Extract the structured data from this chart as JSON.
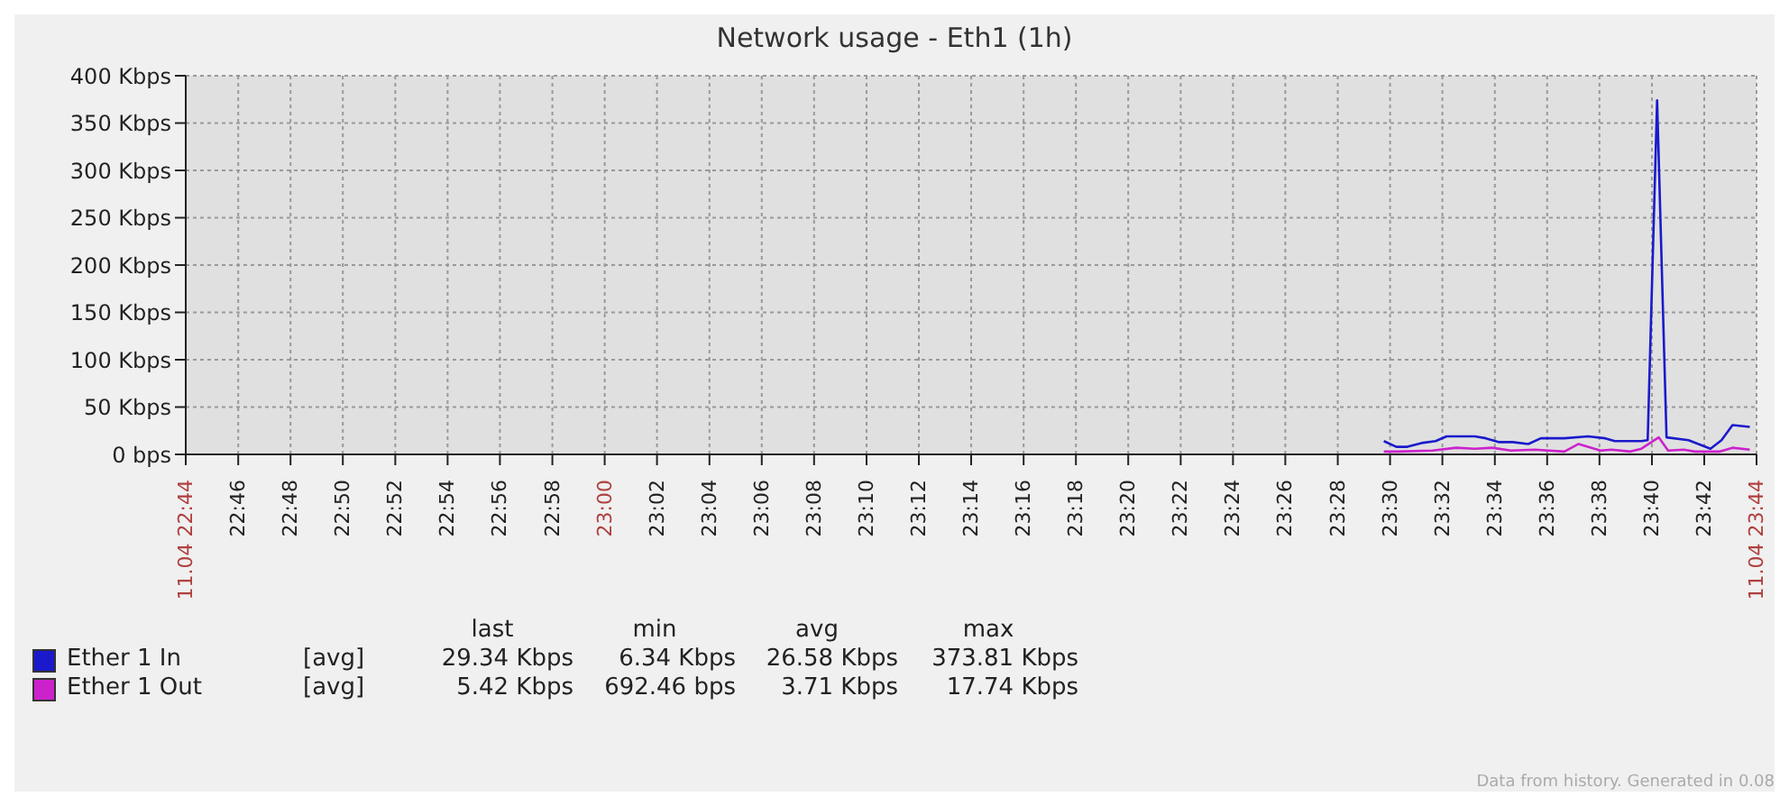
{
  "chart_data": {
    "type": "line",
    "title": "Network usage - Eth1 (1h)",
    "xlim": [
      22.7333,
      23.7333
    ],
    "xticks": [
      {
        "value": 22.7333,
        "label": "11.04 22:44"
      },
      {
        "value": 22.7667,
        "label": "22:46"
      },
      {
        "value": 22.8,
        "label": "22:48"
      },
      {
        "value": 22.8333,
        "label": "22:50"
      },
      {
        "value": 22.8667,
        "label": "22:52"
      },
      {
        "value": 22.9,
        "label": "22:54"
      },
      {
        "value": 22.9333,
        "label": "22:56"
      },
      {
        "value": 22.9667,
        "label": "22:58"
      },
      {
        "value": 23,
        "label": "23:00"
      },
      {
        "value": 23.0333,
        "label": "23:02"
      },
      {
        "value": 23.0667,
        "label": "23:04"
      },
      {
        "value": 23.1,
        "label": "23:06"
      },
      {
        "value": 23.1333,
        "label": "23:08"
      },
      {
        "value": 23.1667,
        "label": "23:10"
      },
      {
        "value": 23.2,
        "label": "23:12"
      },
      {
        "value": 23.2333,
        "label": "23:14"
      },
      {
        "value": 23.2667,
        "label": "23:16"
      },
      {
        "value": 23.3,
        "label": "23:18"
      },
      {
        "value": 23.3333,
        "label": "23:20"
      },
      {
        "value": 23.3667,
        "label": "23:22"
      },
      {
        "value": 23.4,
        "label": "23:24"
      },
      {
        "value": 23.4333,
        "label": "23:26"
      },
      {
        "value": 23.4667,
        "label": "23:28"
      },
      {
        "value": 23.5,
        "label": "23:30"
      },
      {
        "value": 23.5333,
        "label": "23:32"
      },
      {
        "value": 23.5667,
        "label": "23:34"
      },
      {
        "value": 23.6,
        "label": "23:36"
      },
      {
        "value": 23.6333,
        "label": "23:38"
      },
      {
        "value": 23.6667,
        "label": "23:40"
      },
      {
        "value": 23.7,
        "label": "23:42"
      },
      {
        "value": 23.7333,
        "label": "11.04 23:44"
      }
    ],
    "ylim": [
      0,
      400
    ],
    "yticks": [
      {
        "value": 0,
        "label": "0 bps"
      },
      {
        "value": 50,
        "label": "50 Kbps"
      },
      {
        "value": 100,
        "label": "100 Kbps"
      },
      {
        "value": 150,
        "label": "150 Kbps"
      },
      {
        "value": 200,
        "label": "200 Kbps"
      },
      {
        "value": 250,
        "label": "250 Kbps"
      },
      {
        "value": 300,
        "label": "300 Kbps"
      },
      {
        "value": 350,
        "label": "350 Kbps"
      },
      {
        "value": 400,
        "label": "400 Kbps"
      }
    ],
    "grid": true,
    "legend": "bottom",
    "marker": "none",
    "line_style": "solid",
    "series": [
      {
        "name": "Ether 1 In",
        "color": "#1a1acc",
        "x": [
          23.496,
          23.504,
          23.511,
          23.52,
          23.529,
          23.536,
          23.554,
          23.561,
          23.569,
          23.578,
          23.588,
          23.596,
          23.611,
          23.626,
          23.637,
          23.643,
          23.66,
          23.664,
          23.67,
          23.676,
          23.69,
          23.704,
          23.711,
          23.718,
          23.729
        ],
        "values": [
          14,
          8,
          8,
          12,
          14,
          19,
          19,
          17,
          13,
          13,
          11,
          17,
          17,
          19,
          17,
          14,
          14,
          15,
          374,
          18,
          15,
          6,
          15,
          31,
          29
        ]
      },
      {
        "name": "Ether 1 Out",
        "color": "#cc22cc",
        "x": [
          23.496,
          23.505,
          23.527,
          23.542,
          23.554,
          23.565,
          23.577,
          23.592,
          23.611,
          23.62,
          23.634,
          23.641,
          23.653,
          23.66,
          23.671,
          23.677,
          23.687,
          23.694,
          23.71,
          23.718,
          23.729
        ],
        "values": [
          3,
          3,
          4,
          7,
          6,
          7,
          4,
          5,
          3,
          11,
          4,
          5,
          3,
          6,
          18,
          4,
          5,
          3,
          3,
          7,
          5
        ]
      }
    ],
    "annotations": [
      "last",
      "min",
      "avg",
      "max",
      "[avg]",
      "29.34 Kbps",
      "6.34 Kbps",
      "26.58 Kbps",
      "373.81 Kbps",
      "[avg]",
      "5.42 Kbps",
      "692.46 bps",
      "3.71 Kbps",
      "17.74 Kbps",
      "Data from history. Generated in 0.08"
    ]
  }
}
